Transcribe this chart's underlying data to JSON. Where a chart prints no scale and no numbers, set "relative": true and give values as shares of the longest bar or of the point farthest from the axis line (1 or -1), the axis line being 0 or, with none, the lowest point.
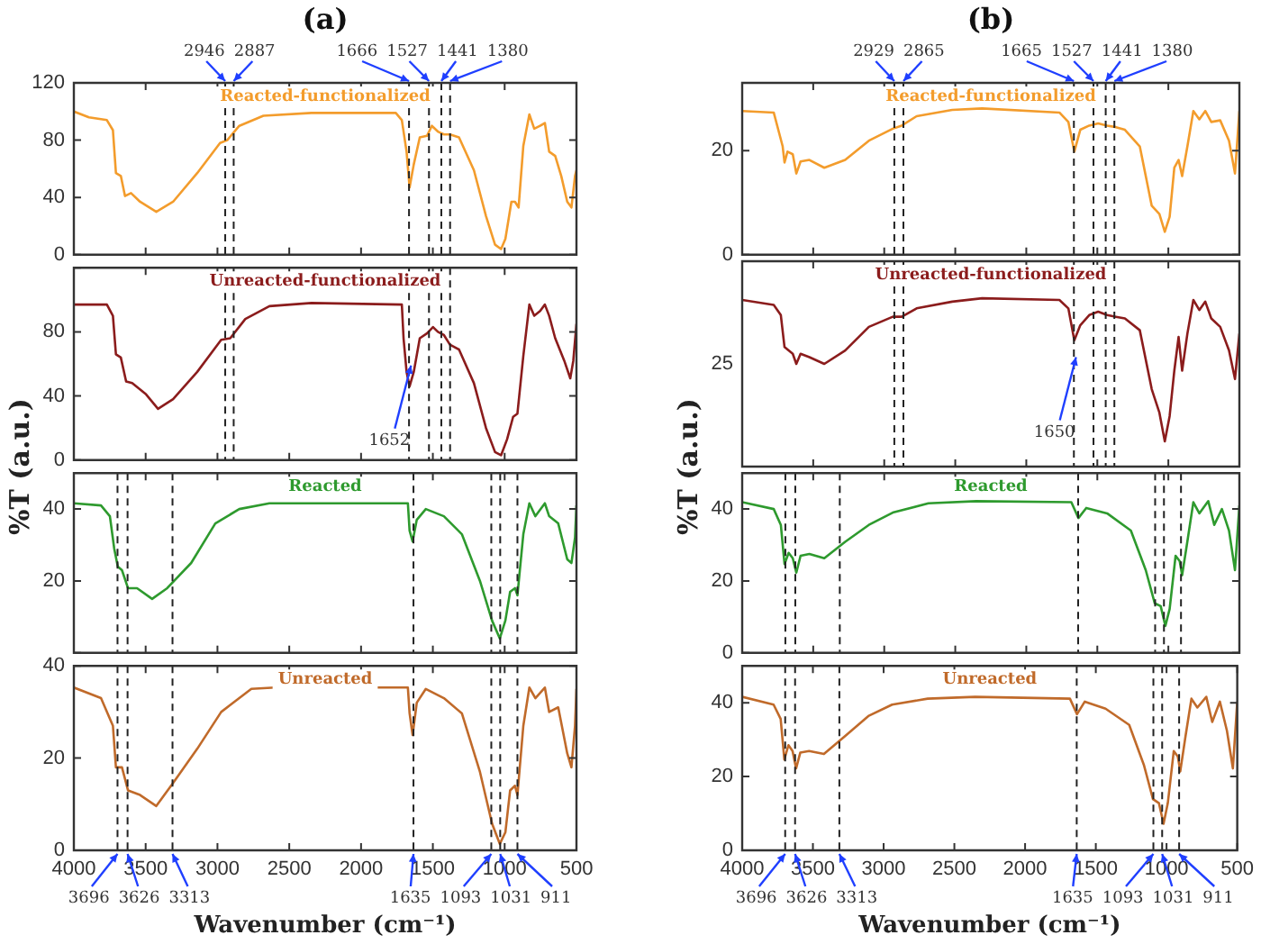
{
  "chart_data": [
    {
      "type": "line",
      "title": "(a)",
      "xlim": [
        4000,
        500
      ],
      "xticks": [
        4000,
        3500,
        3000,
        2500,
        2000,
        1500,
        1000,
        500
      ],
      "ylim": [
        0,
        120
      ],
      "yticks": [
        0,
        40,
        80,
        120
      ],
      "tick_labels": "y",
      "grid": false,
      "legend": false,
      "series": [
        {
          "name": "Reacted-functionalized",
          "color": "#f39c2c",
          "x": [
            4000,
            3895,
            3770,
            3728,
            3707,
            3673,
            3644,
            3602,
            3539,
            3426,
            3309,
            3141,
            2982,
            2932,
            2848,
            2680,
            2345,
            1758,
            1716,
            1683,
            1662,
            1633,
            1591,
            1541,
            1507,
            1465,
            1423,
            1381,
            1318,
            1214,
            1130,
            1067,
            1025,
            995,
            953,
            928,
            903,
            870,
            828,
            794,
            753,
            720,
            690,
            648,
            606,
            564,
            535,
            510,
            500
          ],
          "values": [
            100,
            96,
            94,
            87,
            57,
            55,
            41,
            43,
            37,
            30,
            37,
            57,
            78,
            80,
            90,
            97,
            99,
            99,
            94,
            72,
            47,
            63,
            82,
            83,
            90,
            86,
            84,
            84,
            82,
            59,
            27,
            7,
            4,
            11,
            37,
            37,
            33,
            76,
            98,
            88,
            90,
            92,
            72,
            69,
            55,
            37,
            33,
            55,
            59
          ]
        }
      ],
      "ref_lines": [
        {
          "axis": "x",
          "value": 2946,
          "label": "2946",
          "line_style": "dashed"
        },
        {
          "axis": "x",
          "value": 2887,
          "label": "2887",
          "line_style": "dashed"
        },
        {
          "axis": "x",
          "value": 1666,
          "label": "1666",
          "line_style": "dashed"
        },
        {
          "axis": "x",
          "value": 1527,
          "label": "1527",
          "line_style": "dashed"
        },
        {
          "axis": "x",
          "value": 1441,
          "label": "1441",
          "line_style": "dashed"
        },
        {
          "axis": "x",
          "value": 1380,
          "label": "1380",
          "line_style": "dashed"
        }
      ]
    },
    {
      "type": "line",
      "ylabel": "%T (a.u.)",
      "xlim": [
        4000,
        500
      ],
      "xticks": [
        4000,
        3500,
        3000,
        2500,
        2000,
        1500,
        1000,
        500
      ],
      "ylim": [
        0,
        120
      ],
      "yticks": [
        0,
        40,
        80,
        {
          "value": 120,
          "label": null
        }
      ],
      "tick_labels": "y",
      "grid": false,
      "legend": false,
      "series": [
        {
          "name": "Unreacted-functionalized",
          "color": "#8b1c1c",
          "x": [
            4000,
            3770,
            3728,
            3707,
            3673,
            3636,
            3594,
            3497,
            3414,
            3309,
            3141,
            2974,
            2911,
            2806,
            2638,
            2345,
            1716,
            1704,
            1683,
            1662,
            1633,
            1591,
            1541,
            1499,
            1465,
            1423,
            1381,
            1318,
            1214,
            1130,
            1067,
            1025,
            983,
            941,
            911,
            870,
            828,
            794,
            753,
            720,
            690,
            648,
            585,
            543,
            522,
            500
          ],
          "values": [
            97,
            97,
            90,
            66,
            64,
            49,
            48,
            41,
            32,
            38,
            55,
            75,
            76,
            88,
            96,
            98,
            97,
            76,
            55,
            46,
            55,
            76,
            79,
            83,
            80,
            78,
            72,
            69,
            48,
            20,
            5,
            3,
            13,
            27,
            29,
            65,
            97,
            90,
            93,
            97,
            90,
            76,
            62,
            51,
            62,
            85
          ]
        }
      ],
      "ref_lines": [
        {
          "axis": "x",
          "value": 2946,
          "line_style": "dashed"
        },
        {
          "axis": "x",
          "value": 2887,
          "line_style": "dashed"
        },
        {
          "axis": "x",
          "value": 1666,
          "line_style": "dashed"
        },
        {
          "axis": "x",
          "value": 1527,
          "line_style": "dashed"
        },
        {
          "axis": "x",
          "value": 1441,
          "line_style": "dashed"
        },
        {
          "axis": "x",
          "value": 1380,
          "line_style": "dashed"
        }
      ],
      "annotations": [
        {
          "text": "1652",
          "x": 1652,
          "y": 59
        }
      ]
    },
    {
      "type": "line",
      "xlim": [
        4000,
        500
      ],
      "xticks": [
        4000,
        3500,
        3000,
        2500,
        2000,
        1500,
        1000,
        500
      ],
      "ylim": [
        0,
        50
      ],
      "yticks": [
        {
          "value": 0,
          "label": null
        },
        20,
        40
      ],
      "tick_labels": "y",
      "grid": false,
      "legend": false,
      "series": [
        {
          "name": "Reacted",
          "color": "#2e9a2e",
          "x": [
            4000,
            3811,
            3749,
            3719,
            3694,
            3665,
            3623,
            3560,
            3455,
            3350,
            3183,
            3015,
            2848,
            2638,
            1674,
            1662,
            1641,
            1612,
            1549,
            1423,
            1298,
            1172,
            1088,
            1034,
            995,
            962,
            928,
            911,
            870,
            828,
            786,
            720,
            690,
            627,
            564,
            535,
            510,
            500
          ],
          "values": [
            41.6,
            41,
            38,
            29,
            24,
            23,
            18,
            18,
            15,
            18,
            25,
            36,
            40,
            41.6,
            41.6,
            34,
            31,
            37,
            40,
            38,
            33,
            20,
            9,
            4,
            9,
            17,
            18,
            16,
            33,
            41.6,
            38,
            41.6,
            38,
            36,
            26,
            25,
            32,
            41
          ]
        }
      ],
      "ref_lines": [
        {
          "axis": "x",
          "value": 3696,
          "line_style": "dashed"
        },
        {
          "axis": "x",
          "value": 3626,
          "line_style": "dashed"
        },
        {
          "axis": "x",
          "value": 3313,
          "line_style": "dashed"
        },
        {
          "axis": "x",
          "value": 1635,
          "line_style": "dashed"
        },
        {
          "axis": "x",
          "value": 1093,
          "line_style": "dashed"
        },
        {
          "axis": "x",
          "value": 1031,
          "line_style": "dashed"
        },
        {
          "axis": "x",
          "value": 911,
          "line_style": "dashed"
        }
      ]
    },
    {
      "type": "line",
      "xlabel": "Wavenumber (cm⁻¹)",
      "xlim": [
        4000,
        500
      ],
      "xticks": [
        4000,
        3500,
        3000,
        2500,
        2000,
        1500,
        1000,
        500
      ],
      "ylim": [
        0,
        40
      ],
      "yticks": [
        0,
        20,
        40
      ],
      "grid": false,
      "legend": false,
      "series": [
        {
          "name": "Unreacted",
          "color": "#c06a2a",
          "x": [
            4000,
            3811,
            3728,
            3707,
            3665,
            3623,
            3539,
            3426,
            3309,
            3141,
            2974,
            2764,
            2596,
            1674,
            1662,
            1641,
            1612,
            1549,
            1423,
            1298,
            1172,
            1088,
            1034,
            995,
            962,
            928,
            911,
            870,
            828,
            786,
            720,
            690,
            627,
            564,
            535,
            510,
            500
          ],
          "values": [
            35.3,
            33,
            27,
            18,
            18,
            13,
            12,
            9.6,
            14.6,
            22,
            30,
            35,
            35.3,
            35.3,
            29.7,
            25,
            32,
            35,
            33,
            29.7,
            17,
            5.8,
            1.4,
            3.9,
            13,
            14,
            12,
            27,
            35.3,
            33,
            35.3,
            30,
            31,
            21,
            18,
            27,
            35
          ]
        }
      ],
      "ref_lines": [
        {
          "axis": "x",
          "value": 3696,
          "label": "3696",
          "line_style": "dashed"
        },
        {
          "axis": "x",
          "value": 3626,
          "label": "3626",
          "line_style": "dashed"
        },
        {
          "axis": "x",
          "value": 3313,
          "label": "3313",
          "line_style": "dashed"
        },
        {
          "axis": "x",
          "value": 1635,
          "label": "1635",
          "line_style": "dashed"
        },
        {
          "axis": "x",
          "value": 1093,
          "label": "1093",
          "line_style": "dashed"
        },
        {
          "axis": "x",
          "value": 1031,
          "label": "1031",
          "line_style": "dashed"
        },
        {
          "axis": "x",
          "value": 911,
          "label": "911",
          "line_style": "dashed"
        }
      ]
    },
    {
      "type": "line",
      "title": "(b)",
      "xlim": [
        4000,
        500
      ],
      "xticks": [
        4000,
        3500,
        3000,
        2500,
        2000,
        1500,
        1000,
        500
      ],
      "ylim": [
        0,
        33
      ],
      "yticks": [
        0,
        20
      ],
      "tick_labels": "y",
      "grid": false,
      "legend": false,
      "series": [
        {
          "name": "Reacted-functionalized",
          "color": "#f39c2c",
          "x": [
            4000,
            3778,
            3715,
            3702,
            3681,
            3644,
            3619,
            3589,
            3527,
            3422,
            3275,
            3108,
            2940,
            2877,
            2772,
            2521,
            2311,
            1767,
            1704,
            1662,
            1620,
            1557,
            1494,
            1431,
            1369,
            1306,
            1201,
            1117,
            1063,
            1025,
            991,
            958,
            928,
            903,
            866,
            824,
            782,
            740,
            698,
            635,
            573,
            531,
            500
          ],
          "values": [
            27.6,
            27.3,
            20.8,
            17.7,
            19.8,
            19.3,
            15.6,
            17.9,
            18.2,
            16.7,
            18.2,
            21.9,
            24.2,
            24.8,
            26.6,
            27.8,
            28.1,
            27.3,
            25.5,
            19.8,
            24,
            24.8,
            25.2,
            24.8,
            24.5,
            24,
            20.8,
            9.4,
            7.8,
            4.4,
            7.3,
            16.7,
            18.2,
            15.1,
            20.8,
            27.6,
            26,
            27.6,
            25.5,
            25.8,
            21.9,
            15.6,
            27.6
          ]
        }
      ],
      "ref_lines": [
        {
          "axis": "x",
          "value": 2929,
          "label": "2929",
          "line_style": "dashed"
        },
        {
          "axis": "x",
          "value": 2865,
          "label": "2865",
          "line_style": "dashed"
        },
        {
          "axis": "x",
          "value": 1665,
          "label": "1665",
          "line_style": "dashed"
        },
        {
          "axis": "x",
          "value": 1527,
          "label": "1527",
          "line_style": "dashed"
        },
        {
          "axis": "x",
          "value": 1441,
          "label": "1441",
          "line_style": "dashed"
        },
        {
          "axis": "x",
          "value": 1380,
          "label": "1380",
          "line_style": "dashed"
        }
      ]
    },
    {
      "type": "line",
      "ylabel": "%T (a.u.)",
      "relative": true,
      "xlim": [
        4000,
        500
      ],
      "xticks": [
        4000,
        3500,
        3000,
        2500,
        2000,
        1500,
        1000,
        500
      ],
      "tick_labels": false,
      "grid": false,
      "legend": false,
      "series": [
        {
          "name": "Unreacted-functionalized",
          "color": "#8b1c1c",
          "x": [
            4000,
            3778,
            3728,
            3702,
            3673,
            3644,
            3619,
            3589,
            3527,
            3422,
            3275,
            3108,
            2940,
            2877,
            2772,
            2521,
            2311,
            1767,
            1704,
            1662,
            1620,
            1557,
            1494,
            1431,
            1369,
            1306,
            1201,
            1117,
            1063,
            1025,
            991,
            958,
            928,
            903,
            866,
            824,
            782,
            740,
            698,
            635,
            573,
            531,
            500
          ],
          "values": [
            0.99,
            0.96,
            0.9,
            0.71,
            0.69,
            0.67,
            0.61,
            0.67,
            0.65,
            0.61,
            0.69,
            0.83,
            0.89,
            0.89,
            0.94,
            0.98,
            1,
            0.99,
            0.94,
            0.75,
            0.84,
            0.9,
            0.92,
            0.9,
            0.89,
            0.88,
            0.81,
            0.46,
            0.32,
            0.15,
            0.3,
            0.57,
            0.77,
            0.57,
            0.79,
            0.99,
            0.93,
            0.98,
            0.88,
            0.83,
            0.69,
            0.52,
            0.79
          ]
        }
      ],
      "ref_lines": [
        {
          "axis": "x",
          "value": 2929,
          "line_style": "dashed"
        },
        {
          "axis": "x",
          "value": 2865,
          "line_style": "dashed"
        },
        {
          "axis": "x",
          "value": 1665,
          "line_style": "dashed"
        },
        {
          "axis": "x",
          "value": 1527,
          "line_style": "dashed"
        },
        {
          "axis": "x",
          "value": 1441,
          "line_style": "dashed"
        },
        {
          "axis": "x",
          "value": 1380,
          "line_style": "dashed"
        }
      ],
      "annotations": [
        "25",
        {
          "text": "1650",
          "x": 1650,
          "y": 0.65
        }
      ]
    },
    {
      "type": "line",
      "xlim": [
        4000,
        500
      ],
      "xticks": [
        4000,
        3500,
        3000,
        2500,
        2000,
        1500,
        1000,
        500
      ],
      "ylim": [
        0,
        50
      ],
      "yticks": [
        0,
        20,
        40
      ],
      "tick_labels": "y",
      "grid": false,
      "legend": false,
      "series": [
        {
          "name": "Reacted",
          "color": "#2e9a2e",
          "x": [
            4000,
            3778,
            3728,
            3702,
            3673,
            3644,
            3619,
            3589,
            3527,
            3422,
            3275,
            3108,
            2940,
            2689,
            2353,
            1683,
            1633,
            1578,
            1431,
            1264,
            1159,
            1096,
            1054,
            1021,
            991,
            949,
            920,
            903,
            866,
            824,
            782,
            719,
            677,
            623,
            573,
            531,
            500
          ],
          "values": [
            41.9,
            40,
            35.6,
            24.7,
            27.8,
            26.3,
            22.3,
            27,
            27.5,
            26.3,
            30.9,
            35.6,
            39,
            41.6,
            42.2,
            41.9,
            37.5,
            40.3,
            38.8,
            34,
            23,
            13.8,
            13,
            7.5,
            12.2,
            27,
            25.5,
            21.6,
            31,
            41.9,
            38.8,
            42.2,
            35.6,
            40,
            34,
            23,
            41
          ]
        }
      ],
      "ref_lines": [
        {
          "axis": "x",
          "value": 3696,
          "line_style": "dashed"
        },
        {
          "axis": "x",
          "value": 3626,
          "line_style": "dashed"
        },
        {
          "axis": "x",
          "value": 3313,
          "line_style": "dashed"
        },
        {
          "axis": "x",
          "value": 1635,
          "line_style": "dashed"
        },
        {
          "axis": "x",
          "value": 1093,
          "line_style": "dashed"
        },
        {
          "axis": "x",
          "value": 1031,
          "line_style": "dashed"
        },
        {
          "axis": "x",
          "value": 911,
          "line_style": "dashed"
        }
      ]
    },
    {
      "type": "line",
      "xlabel": "Wavenumber (cm⁻¹)",
      "xlim": [
        4000,
        500
      ],
      "xticks": [
        4000,
        3500,
        3000,
        2500,
        2000,
        1500,
        1000,
        500
      ],
      "ylim": [
        0,
        50
      ],
      "yticks": [
        0,
        20,
        40
      ],
      "grid": false,
      "legend": false,
      "series": [
        {
          "name": "Unreacted",
          "color": "#c06a2a",
          "x": [
            4000,
            3778,
            3728,
            3702,
            3673,
            3644,
            3619,
            3589,
            3527,
            3422,
            3275,
            3108,
            2940,
            2689,
            2353,
            1683,
            1633,
            1578,
            1431,
            1264,
            1159,
            1096,
            1054,
            1021,
            991,
            949,
            920,
            903,
            866,
            824,
            782,
            719,
            677,
            623,
            573,
            531,
            500
          ],
          "values": [
            41.6,
            39.5,
            35.6,
            24.6,
            28.5,
            26.9,
            22.2,
            26.5,
            26.9,
            26.1,
            30.9,
            36.4,
            39.5,
            41.1,
            41.6,
            41.1,
            36.9,
            40.3,
            38.4,
            34,
            23,
            13.9,
            12.8,
            7.2,
            12.8,
            26.9,
            25.4,
            21.4,
            30.9,
            41.1,
            38.7,
            41.6,
            34.8,
            40.3,
            32.4,
            22.2,
            40.3
          ]
        }
      ],
      "ref_lines": [
        {
          "axis": "x",
          "value": 3696,
          "label": "3696",
          "line_style": "dashed"
        },
        {
          "axis": "x",
          "value": 3626,
          "label": "3626",
          "line_style": "dashed"
        },
        {
          "axis": "x",
          "value": 3313,
          "label": "3313",
          "line_style": "dashed"
        },
        {
          "axis": "x",
          "value": 1635,
          "label": "1635",
          "line_style": "dashed"
        },
        {
          "axis": "x",
          "value": 1093,
          "label": "1093",
          "line_style": "dashed"
        },
        {
          "axis": "x",
          "value": 1031,
          "label": "1031",
          "line_style": "dashed"
        },
        {
          "axis": "x",
          "value": 911,
          "label": "911",
          "line_style": "dashed"
        }
      ]
    }
  ]
}
